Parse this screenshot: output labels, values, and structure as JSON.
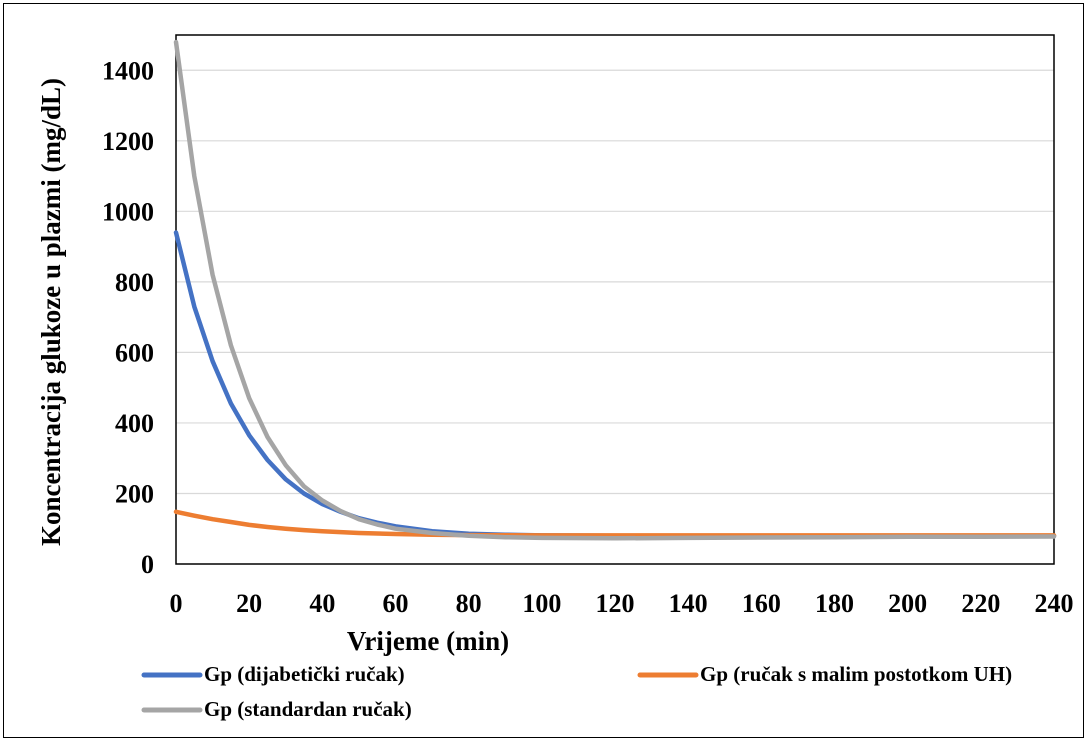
{
  "chart_data": {
    "type": "line",
    "title": "",
    "xlabel": "Vrijeme (min)",
    "ylabel": "Koncentracija glukoze u plazmi (mg/dL)",
    "xlim": [
      0,
      240
    ],
    "ylim": [
      0,
      1500
    ],
    "x_ticks": [
      0,
      20,
      40,
      60,
      80,
      100,
      120,
      140,
      160,
      180,
      200,
      220,
      240
    ],
    "y_ticks": [
      0,
      200,
      400,
      600,
      800,
      1000,
      1200,
      1400
    ],
    "grid": "horizontal",
    "legend_position": "bottom",
    "series": [
      {
        "name": "Gp (dijabetički ručak)",
        "color": "#4472C4",
        "x": [
          0,
          5,
          10,
          15,
          20,
          25,
          30,
          35,
          40,
          45,
          50,
          55,
          60,
          70,
          80,
          90,
          100,
          120,
          140,
          160,
          180,
          200,
          220,
          240
        ],
        "y": [
          940,
          730,
          575,
          455,
          365,
          295,
          240,
          200,
          170,
          148,
          130,
          117,
          107,
          93,
          86,
          83,
          81,
          80,
          80,
          80,
          80,
          80,
          80,
          80
        ]
      },
      {
        "name": "Gp (ručak s malim postotkom UH)",
        "color": "#ED7D31",
        "x": [
          0,
          5,
          10,
          15,
          20,
          25,
          30,
          35,
          40,
          50,
          60,
          70,
          80,
          100,
          120,
          140,
          160,
          180,
          200,
          220,
          240
        ],
        "y": [
          148,
          137,
          127,
          119,
          111,
          105,
          100,
          96,
          93,
          88,
          85,
          83,
          82,
          81,
          81,
          81,
          81,
          81,
          81,
          81,
          81
        ]
      },
      {
        "name": "Gp (standardan ručak)",
        "color": "#A5A5A5",
        "x": [
          0,
          5,
          10,
          15,
          20,
          25,
          30,
          35,
          40,
          45,
          50,
          55,
          60,
          70,
          80,
          90,
          100,
          120,
          140,
          160,
          180,
          200,
          220,
          240
        ],
        "y": [
          1480,
          1100,
          820,
          620,
          470,
          360,
          280,
          220,
          180,
          150,
          127,
          112,
          100,
          88,
          80,
          76,
          74,
          73,
          74,
          75,
          76,
          77,
          77,
          78
        ]
      }
    ]
  }
}
